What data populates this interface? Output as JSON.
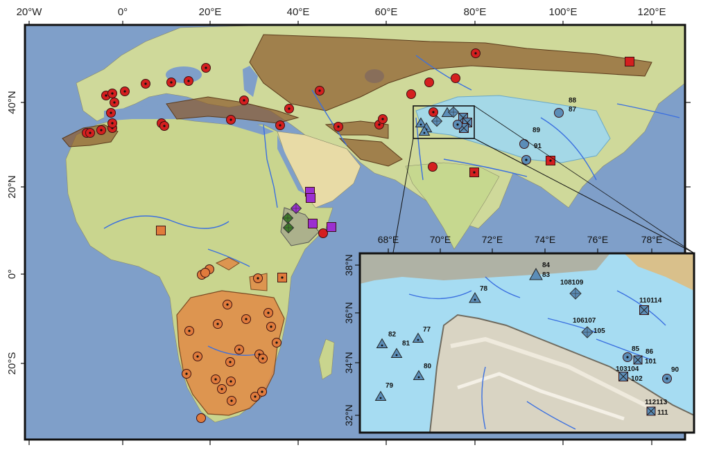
{
  "main_axes": {
    "lon_labels": [
      "20°W",
      "0°",
      "20°E",
      "40°E",
      "60°E",
      "80°E",
      "100°E",
      "120°E"
    ],
    "lat_labels": [
      "40°N",
      "20°N",
      "0°",
      "20°S"
    ]
  },
  "inset_axes": {
    "lon_labels": [
      "68°E",
      "70°E",
      "72°E",
      "74°E",
      "76°E",
      "78°E"
    ],
    "lat_labels": [
      "38°N",
      "36°N",
      "34°N",
      "32°N"
    ]
  },
  "main_labels": [
    "88",
    "87",
    "89",
    "91"
  ],
  "inset_labels": [
    "84",
    "83",
    "78",
    "108109",
    "110114",
    "106107",
    "105",
    "82",
    "77",
    "81",
    "80",
    "79",
    "85",
    "86",
    "101",
    "103104",
    "102",
    "90",
    "112113",
    "111"
  ],
  "colors": {
    "red_marker": "#d41f1f",
    "orange_marker": "#e07b3c",
    "purple_marker": "#9b30d0",
    "green_marker": "#3e7d2a",
    "blue_marker": "#5b8db8",
    "ocean": "#7f9fc9",
    "land": "#cfd99a",
    "brown_region": "#8b5a2b",
    "orange_region": "#e08a45",
    "blue_region": "#9fd7ef"
  },
  "marker_shapes": [
    "circle",
    "dotted-circle",
    "square",
    "dotted-square",
    "diamond",
    "triangle",
    "dotted-triangle",
    "crossed-square"
  ]
}
